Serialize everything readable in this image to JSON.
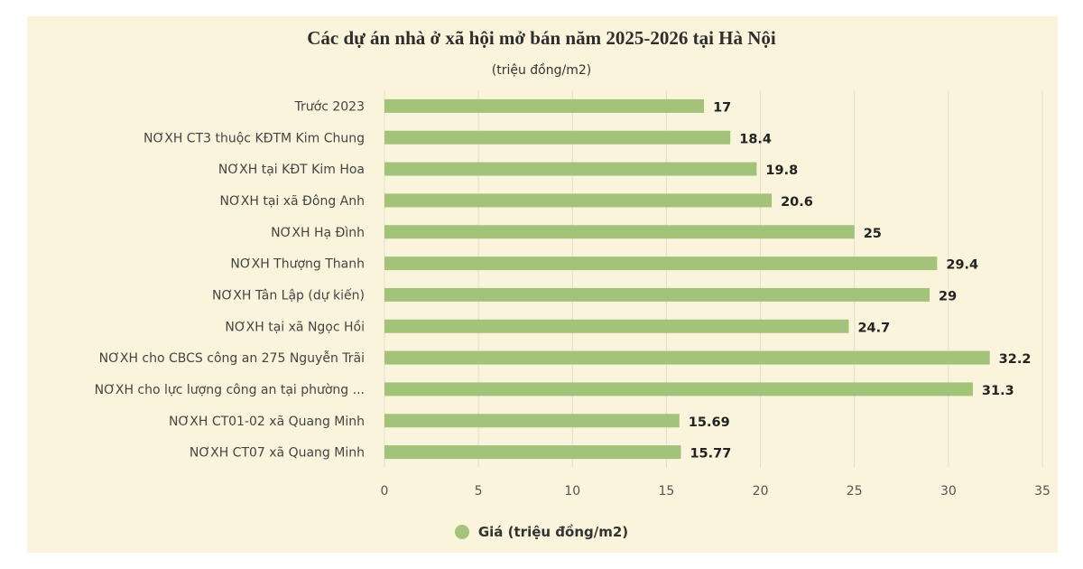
{
  "chart_data": {
    "type": "bar",
    "orientation": "horizontal",
    "title": "Các dự án nhà ở xã hội mở bán năm 2025-2026 tại Hà Nội",
    "subtitle": "(triệu đồng/m2)",
    "categories": [
      "Trước 2023",
      "NƠXH CT3 thuộc KĐTM Kim Chung",
      "NƠXH tại KĐT Kim Hoa",
      "NƠXH tại xã Đông Anh",
      "NƠXH Hạ Đình",
      "NƠXH Thượng Thanh",
      "NƠXH Tân Lập (dự kiến)",
      "NƠXH tại xã Ngọc Hồi",
      "NƠXH cho CBCS công an 275 Nguyễn Trãi",
      "NƠXH cho lực lượng công an tại phường ...",
      "NƠXH CT01-02 xã Quang Minh",
      "NƠXH CT07 xã Quang Minh"
    ],
    "series": [
      {
        "name": "Giá (triệu đồng/m2)",
        "values": [
          17,
          18.4,
          19.8,
          20.6,
          25,
          29.4,
          29,
          24.7,
          32.2,
          31.3,
          15.69,
          15.77
        ]
      }
    ],
    "value_labels": [
      "17",
      "18.4",
      "19.8",
      "20.6",
      "25",
      "29.4",
      "29",
      "24.7",
      "32.2",
      "31.3",
      "15.69",
      "15.77"
    ],
    "x_ticks": [
      "0",
      "5",
      "10",
      "15",
      "20",
      "25",
      "30",
      "35"
    ],
    "xlim": [
      0,
      35
    ],
    "grid": true,
    "legend_position": "bottom",
    "bar_color": "#a3c27a"
  }
}
